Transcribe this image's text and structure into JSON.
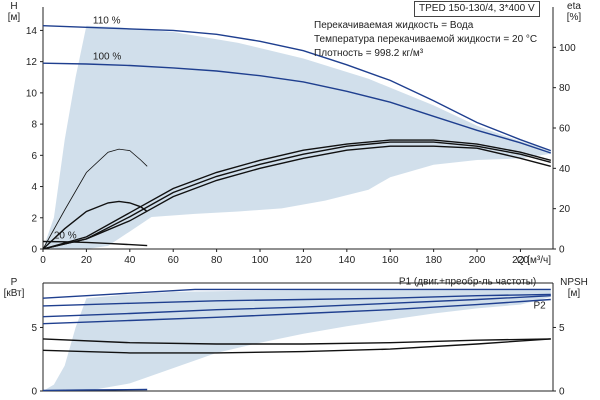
{
  "title": "TPED 150-130/4, 3*400 V",
  "info": [
    "Перекачиваемая жидкость = Вода",
    "Температура перекачиваемой жидкости = 20 °C",
    "Плотность = 998.2 кг/м³"
  ],
  "chart_data": [
    {
      "type": "line",
      "name": "head-chart",
      "xlabel": "Q [м³/ч]",
      "ylabel_left": "H\n[м]",
      "ylabel_right": "eta\n[%]",
      "xlim": [
        0,
        235
      ],
      "ylim_left": [
        0,
        15.5
      ],
      "ylim_right": [
        0,
        120
      ],
      "x_ticks": [
        0,
        20,
        40,
        60,
        80,
        100,
        120,
        140,
        160,
        180,
        200,
        220
      ],
      "y_ticks_left": [
        0,
        2,
        4,
        6,
        8,
        10,
        12,
        14
      ],
      "y_ticks_right": [
        0,
        20,
        40,
        60,
        80,
        100
      ],
      "grid": false,
      "colors": {
        "pump": "#1f3f8f",
        "eta": "#111111",
        "area": "#c9d9e8"
      },
      "operating_area": {
        "x": [
          0,
          5,
          10,
          15,
          20,
          35,
          60,
          90,
          120,
          150,
          180,
          200,
          220,
          234,
          234,
          220,
          200,
          180,
          160,
          150,
          130,
          110,
          90,
          70,
          50,
          30,
          20,
          10,
          5,
          0
        ],
        "y": [
          0,
          2,
          7,
          11,
          14.3,
          14.2,
          13.9,
          13.2,
          12.2,
          10.9,
          9.2,
          7.9,
          6.9,
          6.3,
          6.1,
          5.8,
          5.7,
          5.4,
          4.6,
          3.8,
          3.1,
          2.6,
          2.4,
          2.25,
          2.05,
          0.2,
          0,
          0,
          0,
          0
        ]
      },
      "series": [
        {
          "name": "110 %",
          "axis": "left",
          "label_at": [
            23,
            14.3
          ],
          "x": [
            0,
            20,
            40,
            60,
            80,
            100,
            120,
            140,
            160,
            180,
            200,
            220,
            234
          ],
          "y": [
            14.3,
            14.2,
            14.1,
            14.0,
            13.75,
            13.3,
            12.7,
            11.8,
            10.8,
            9.5,
            8.1,
            7.0,
            6.3
          ]
        },
        {
          "name": "100 %",
          "axis": "left",
          "label_at": [
            23,
            12.0
          ],
          "x": [
            0,
            20,
            40,
            60,
            80,
            100,
            120,
            140,
            160,
            180,
            200,
            220,
            234
          ],
          "y": [
            11.9,
            11.85,
            11.75,
            11.6,
            11.4,
            11.1,
            10.7,
            10.1,
            9.4,
            8.5,
            7.6,
            6.8,
            6.15
          ]
        },
        {
          "name": "20 %",
          "axis": "left",
          "label_at": [
            5,
            0.55
          ],
          "x": [
            0,
            10,
            20,
            30,
            40,
            48
          ],
          "y": [
            0.48,
            0.46,
            0.42,
            0.36,
            0.28,
            0.22
          ]
        },
        {
          "axis": "left",
          "x": [
            0,
            10,
            20,
            30,
            35,
            40,
            45,
            48
          ],
          "y": [
            0,
            2.5,
            4.9,
            6.2,
            6.4,
            6.3,
            5.7,
            5.3
          ]
        },
        {
          "axis": "left",
          "x": [
            0,
            10,
            20,
            30,
            35,
            40,
            45,
            48
          ],
          "y": [
            0,
            1.3,
            2.4,
            2.95,
            3.05,
            2.95,
            2.7,
            2.4
          ]
        },
        {
          "axis": "right",
          "x": [
            0,
            20,
            40,
            60,
            80,
            100,
            120,
            140,
            160,
            180,
            200,
            220,
            234
          ],
          "y": [
            0,
            5,
            14,
            26,
            34,
            40,
            45,
            49,
            51,
            51,
            50,
            45,
            41
          ]
        },
        {
          "axis": "right",
          "x": [
            0,
            20,
            40,
            60,
            80,
            100,
            120,
            140,
            160,
            180,
            200,
            220,
            234
          ],
          "y": [
            0,
            5,
            16,
            28,
            36,
            42,
            47,
            51,
            53,
            53,
            51,
            47,
            43
          ]
        },
        {
          "axis": "right",
          "x": [
            0,
            20,
            40,
            60,
            80,
            100,
            120,
            140,
            160,
            180,
            200,
            220,
            234
          ],
          "y": [
            0,
            6,
            18,
            30,
            38,
            44,
            49,
            52,
            54,
            54,
            52,
            48,
            44
          ]
        }
      ]
    },
    {
      "type": "line",
      "name": "power-chart",
      "xlabel": "",
      "ylabel_left": "P\n[кВт]",
      "ylabel_right": "NPSH\n[м]",
      "xlim": [
        0,
        235
      ],
      "ylim_left": [
        0,
        8.5
      ],
      "ylim_right": [
        0,
        8.5
      ],
      "y_ticks_left": [
        0,
        5
      ],
      "y_ticks_right": [
        0,
        5
      ],
      "grid": false,
      "annotations": [
        {
          "text": "P1 (двиг.+преобр-ль частоты)",
          "at": [
            164,
            8.3
          ]
        },
        {
          "text": "P2",
          "at": [
            226,
            6.4
          ]
        }
      ],
      "operating_area": {
        "x": [
          0,
          5,
          10,
          15,
          20,
          40,
          60,
          100,
          140,
          180,
          220,
          234,
          234,
          220,
          200,
          180,
          160,
          140,
          120,
          100,
          80,
          60,
          40,
          20,
          10,
          0
        ],
        "y": [
          0,
          0.5,
          2,
          5,
          7.3,
          7.6,
          7.8,
          7.9,
          8.0,
          8.0,
          8.0,
          8.0,
          7.4,
          6.8,
          6.5,
          6.1,
          5.6,
          5.1,
          4.5,
          3.8,
          3.0,
          1.8,
          0.6,
          0,
          0,
          0
        ]
      },
      "series": [
        {
          "name": "P1 (двиг.+преобр-ль частоты)",
          "axis": "left",
          "x": [
            0,
            30,
            70,
            120,
            170,
            234
          ],
          "y": [
            7.3,
            7.6,
            8.0,
            8.0,
            8.0,
            8.0
          ]
        },
        {
          "axis": "left",
          "x": [
            0,
            40,
            80,
            120,
            160,
            200,
            234
          ],
          "y": [
            6.7,
            6.9,
            7.1,
            7.2,
            7.3,
            7.5,
            7.6
          ]
        },
        {
          "axis": "left",
          "x": [
            0,
            40,
            80,
            120,
            160,
            200,
            234
          ],
          "y": [
            5.85,
            6.1,
            6.4,
            6.6,
            6.9,
            7.2,
            7.5
          ]
        },
        {
          "name": "P2",
          "axis": "left",
          "x": [
            0,
            40,
            80,
            120,
            160,
            200,
            234
          ],
          "y": [
            5.3,
            5.55,
            5.8,
            6.1,
            6.4,
            6.8,
            7.2
          ]
        },
        {
          "axis": "right",
          "x": [
            0,
            40,
            80,
            120,
            160,
            200,
            234
          ],
          "y": [
            4.1,
            3.8,
            3.7,
            3.7,
            3.8,
            4.0,
            4.1
          ]
        },
        {
          "axis": "right",
          "x": [
            0,
            40,
            80,
            120,
            160,
            200,
            234
          ],
          "y": [
            3.2,
            3.0,
            3.0,
            3.1,
            3.3,
            3.7,
            4.1
          ]
        },
        {
          "axis": "left",
          "x": [
            0,
            20,
            48
          ],
          "y": [
            0.05,
            0.08,
            0.12
          ]
        }
      ]
    }
  ]
}
